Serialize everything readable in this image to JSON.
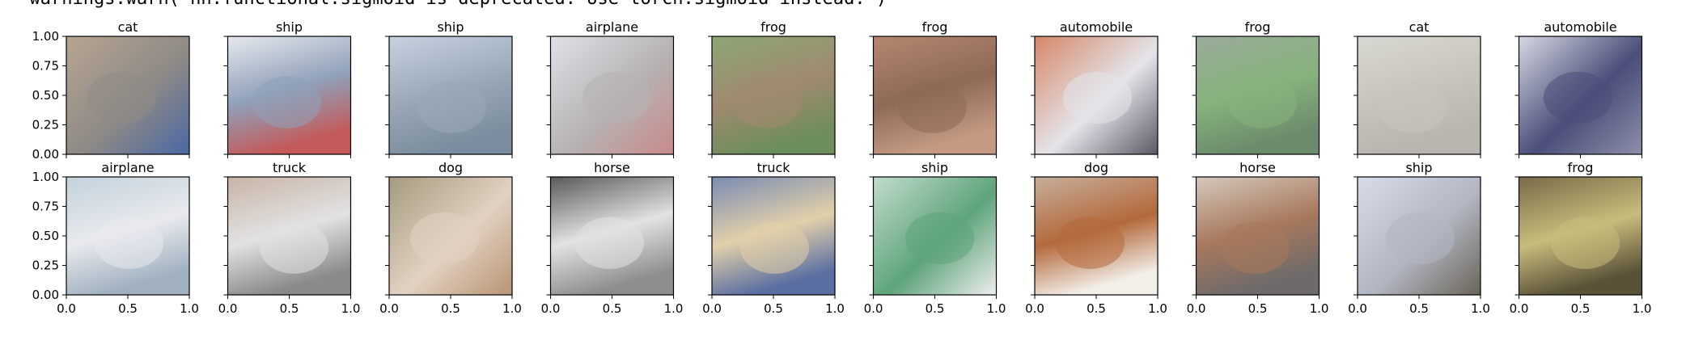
{
  "warning_text": "  warnings.warn(\"nn.functional.sigmoid is deprecated. Use torch.sigmoid instead.\")",
  "chart_data": {
    "type": "image-grid",
    "rows": 2,
    "cols": 10,
    "xlim": [
      0.0,
      1.0
    ],
    "ylim": [
      0.0,
      1.0
    ],
    "xtick_labels": [
      "0.0",
      "0.5",
      "1.0"
    ],
    "ytick_labels": [
      "0.00",
      "0.25",
      "0.50",
      "0.75",
      "1.00"
    ],
    "titles": [
      "cat",
      "ship",
      "ship",
      "airplane",
      "frog",
      "frog",
      "automobile",
      "frog",
      "cat",
      "automobile",
      "airplane",
      "truck",
      "dog",
      "horse",
      "truck",
      "ship",
      "dog",
      "horse",
      "ship",
      "frog"
    ],
    "palettes": [
      [
        "#b7a592",
        "#8f8a86",
        "#4a68a4"
      ],
      [
        "#e6e9ee",
        "#8fa0b8",
        "#c45a5a"
      ],
      [
        "#c6d2e0",
        "#9aa8b8",
        "#7b8d9e"
      ],
      [
        "#dfe1e8",
        "#b6b2b2",
        "#c98a8a"
      ],
      [
        "#8ca676",
        "#a08a6e",
        "#6e8e5c"
      ],
      [
        "#b5876f",
        "#8e6a57",
        "#c49a82"
      ],
      [
        "#d68768",
        "#e4e4ea",
        "#5a5a66"
      ],
      [
        "#9aaa9a",
        "#86b27c",
        "#6c8a6c"
      ],
      [
        "#d8d8d2",
        "#c8c4bc",
        "#b8b4ae"
      ],
      [
        "#d6d8e2",
        "#4a4e7a",
        "#8c8fa8"
      ],
      [
        "#c3d2dc",
        "#e8eaee",
        "#a0b0c0"
      ],
      [
        "#c8b4a6",
        "#e2e2e2",
        "#8a8a8a"
      ],
      [
        "#a59a7e",
        "#e2d2c2",
        "#b89474"
      ],
      [
        "#5a5a5a",
        "#e2e2e2",
        "#8e8e8e"
      ],
      [
        "#7a8cb2",
        "#e2d0aa",
        "#5a6ea2"
      ],
      [
        "#c2dccc",
        "#5ea47a",
        "#eeeeee"
      ],
      [
        "#c6ae9a",
        "#b4693c",
        "#f2eee8"
      ],
      [
        "#d4c8bc",
        "#a8785c",
        "#6e6a6a"
      ],
      [
        "#d8dce8",
        "#b2b6c2",
        "#6a6458"
      ],
      [
        "#7a6a48",
        "#c8bc7c",
        "#5a5238"
      ]
    ]
  }
}
